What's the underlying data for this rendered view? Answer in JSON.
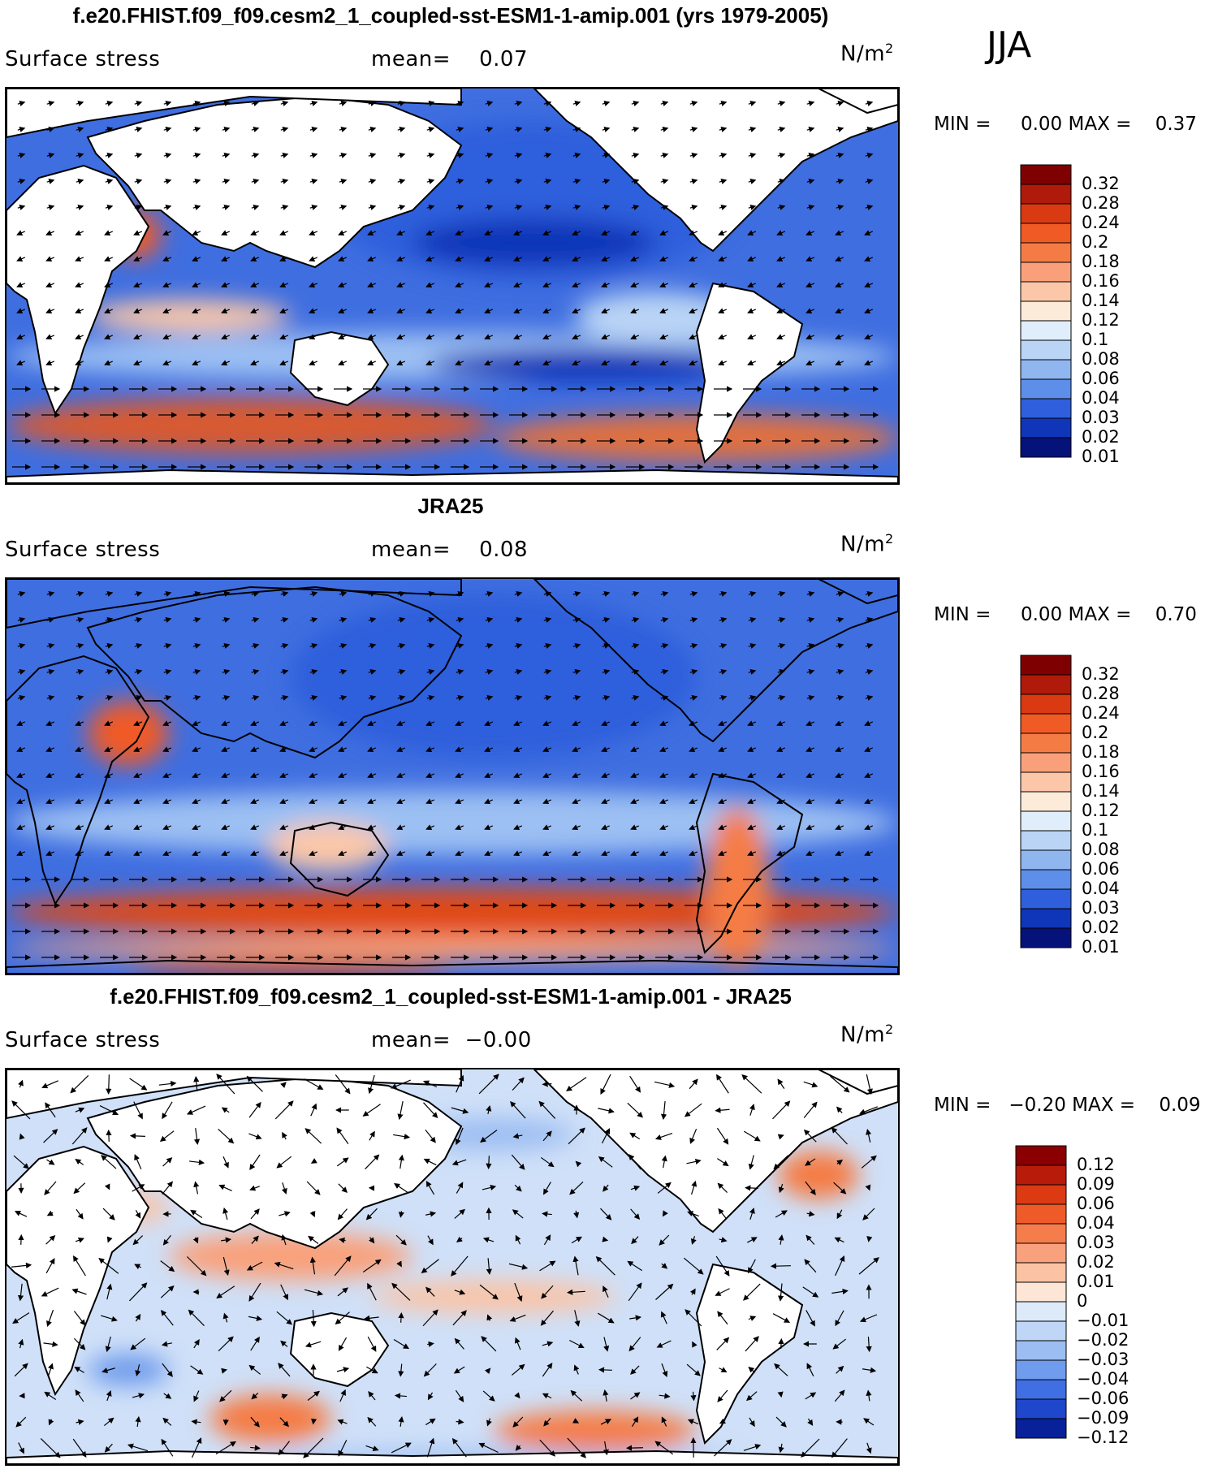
{
  "season": "JJA",
  "panels": [
    {
      "title": "f.e20.FHIST.f09_f09.cesm2_1_coupled-sst-ESM1-1-amip.001 (yrs 1979-2005)",
      "variable": "Surface stress",
      "mean_label": "mean=",
      "mean_value": "0.07",
      "units": "N/m",
      "units_exp": "2",
      "min_label": "MIN =",
      "min_value": "0.00",
      "max_label": "MAX =",
      "max_value": "0.37",
      "colorbar": [
        "0.32",
        "0.28",
        "0.24",
        "0.2",
        "0.18",
        "0.16",
        "0.14",
        "0.12",
        "0.1",
        "0.08",
        "0.06",
        "0.04",
        "0.03",
        "0.02",
        "0.01"
      ],
      "colors": [
        "#7f0000",
        "#b01a0a",
        "#d93a12",
        "#f05a25",
        "#f57b45",
        "#f9a07a",
        "#fbc7a8",
        "#fdebd9",
        "#dfeefa",
        "#b9d4f5",
        "#90b6ef",
        "#5d8eea",
        "#2f5fdc",
        "#0f35b8",
        "#04127a"
      ]
    },
    {
      "title": "JRA25",
      "variable": "Surface stress",
      "mean_label": "mean=",
      "mean_value": "0.08",
      "units": "N/m",
      "units_exp": "2",
      "min_label": "MIN =",
      "min_value": "0.00",
      "max_label": "MAX =",
      "max_value": "0.70",
      "colorbar": [
        "0.32",
        "0.28",
        "0.24",
        "0.2",
        "0.18",
        "0.16",
        "0.14",
        "0.12",
        "0.1",
        "0.08",
        "0.06",
        "0.04",
        "0.03",
        "0.02",
        "0.01"
      ],
      "colors": [
        "#7f0000",
        "#b01a0a",
        "#d93a12",
        "#f05a25",
        "#f57b45",
        "#f9a07a",
        "#fbc7a8",
        "#fdebd9",
        "#dfeefa",
        "#b9d4f5",
        "#90b6ef",
        "#5d8eea",
        "#2f5fdc",
        "#0f35b8",
        "#04127a"
      ]
    },
    {
      "title": "f.e20.FHIST.f09_f09.cesm2_1_coupled-sst-ESM1-1-amip.001 - JRA25",
      "variable": "Surface stress",
      "mean_label": "mean=",
      "mean_value": "−0.00",
      "units": "N/m",
      "units_exp": "2",
      "min_label": "MIN =",
      "min_value": "−0.20",
      "max_label": "MAX =",
      "max_value": "0.09",
      "colorbar": [
        "0.12",
        "0.09",
        "0.06",
        "0.04",
        "0.03",
        "0.02",
        "0.01",
        "0",
        "−0.01",
        "−0.02",
        "−0.03",
        "−0.04",
        "−0.06",
        "−0.09",
        "−0.12"
      ],
      "colors": [
        "#8a0000",
        "#b81b0a",
        "#dc3a12",
        "#ef5b28",
        "#f57d4c",
        "#f9a07c",
        "#fbc3a4",
        "#fde6d6",
        "#dceafa",
        "#bfd6f7",
        "#9cbdf2",
        "#6f9cec",
        "#3f6fe3",
        "#1e47cc",
        "#08219a"
      ]
    }
  ]
}
